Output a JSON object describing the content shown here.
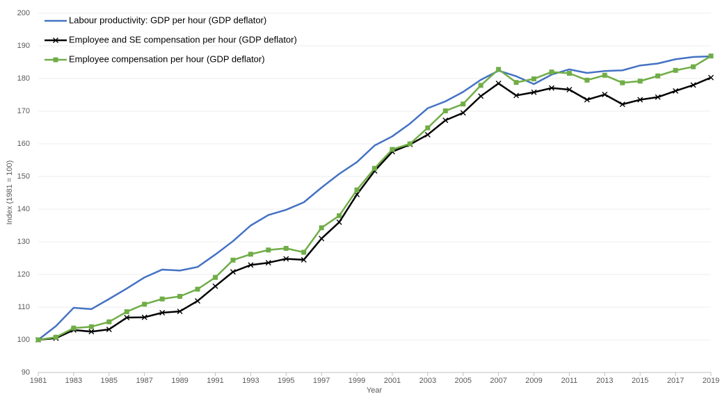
{
  "chart_data": {
    "type": "line",
    "x": [
      1981,
      1982,
      1983,
      1984,
      1985,
      1986,
      1987,
      1988,
      1989,
      1990,
      1991,
      1992,
      1993,
      1994,
      1995,
      1996,
      1997,
      1998,
      1999,
      2000,
      2001,
      2002,
      2003,
      2004,
      2005,
      2006,
      2007,
      2008,
      2009,
      2010,
      2011,
      2012,
      2013,
      2014,
      2015,
      2016,
      2017,
      2018,
      2019
    ],
    "series": [
      {
        "name": "Labour productivity: GDP per hour (GDP deflator)",
        "color": "#4472c4",
        "marker": "none",
        "values": [
          100,
          104.2,
          109.8,
          109.4,
          112.5,
          115.7,
          119.1,
          121.5,
          121.2,
          122.3,
          126.1,
          130.2,
          135.0,
          138.2,
          139.8,
          142.1,
          146.6,
          150.8,
          154.4,
          159.5,
          162.3,
          166.2,
          170.9,
          173.0,
          175.9,
          179.6,
          182.4,
          180.7,
          178.3,
          181.2,
          182.8,
          181.7,
          182.3,
          182.5,
          184.0,
          184.6,
          185.9,
          186.6,
          186.8
        ]
      },
      {
        "name": "Employee and SE compensation per hour (GDP deflator)",
        "color": "#000000",
        "marker": "x",
        "values": [
          100,
          100.5,
          103.0,
          102.5,
          103.2,
          106.8,
          106.9,
          108.3,
          108.7,
          111.9,
          116.4,
          120.8,
          122.9,
          123.6,
          124.8,
          124.5,
          131.0,
          136.0,
          144.5,
          151.7,
          157.6,
          159.8,
          162.8,
          167.2,
          169.5,
          174.6,
          178.5,
          174.8,
          175.8,
          177.1,
          176.6,
          173.5,
          175.1,
          172.1,
          173.5,
          174.3,
          176.2,
          178.0,
          180.3
        ]
      },
      {
        "name": "Employee compensation per hour (GDP deflator)",
        "color": "#70ad47",
        "marker": "square",
        "values": [
          100,
          100.8,
          103.6,
          104.0,
          105.5,
          108.6,
          110.9,
          112.5,
          113.3,
          115.5,
          119.1,
          124.4,
          126.2,
          127.5,
          128.0,
          126.8,
          134.3,
          138.0,
          145.9,
          152.5,
          158.3,
          160.0,
          164.9,
          170.1,
          172.2,
          177.9,
          182.8,
          178.8,
          179.9,
          182.0,
          181.6,
          179.5,
          181.0,
          178.7,
          179.2,
          180.8,
          182.5,
          183.6,
          186.9
        ]
      }
    ],
    "x_label": "Year",
    "y_label": "Index (1981 = 100)",
    "xlim": [
      1981,
      2019
    ],
    "xticks": [
      1981,
      1983,
      1985,
      1987,
      1989,
      1991,
      1993,
      1995,
      1997,
      1999,
      2001,
      2003,
      2005,
      2007,
      2009,
      2011,
      2013,
      2015,
      2017,
      2019
    ],
    "ylim": [
      90,
      200
    ],
    "yticks": [
      90,
      100,
      110,
      120,
      130,
      140,
      150,
      160,
      170,
      180,
      190,
      200
    ],
    "grid": true,
    "legend": "top-left"
  }
}
